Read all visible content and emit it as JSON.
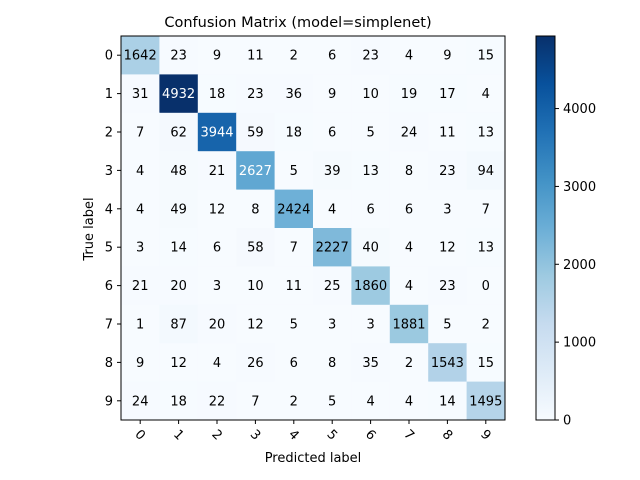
{
  "chart_data": {
    "type": "heatmap",
    "title": "Confusion Matrix (model=simplenet)",
    "xlabel": "Predicted label",
    "ylabel": "True label",
    "x_categories": [
      "0",
      "1",
      "2",
      "3",
      "4",
      "5",
      "6",
      "7",
      "8",
      "9"
    ],
    "y_categories": [
      "0",
      "1",
      "2",
      "3",
      "4",
      "5",
      "6",
      "7",
      "8",
      "9"
    ],
    "values": [
      [
        1642,
        23,
        9,
        11,
        2,
        6,
        23,
        4,
        9,
        15
      ],
      [
        31,
        4932,
        18,
        23,
        36,
        9,
        10,
        19,
        17,
        4
      ],
      [
        7,
        62,
        3944,
        59,
        18,
        6,
        5,
        24,
        11,
        13
      ],
      [
        4,
        48,
        21,
        2627,
        5,
        39,
        13,
        8,
        23,
        94
      ],
      [
        4,
        49,
        12,
        8,
        2424,
        4,
        6,
        6,
        3,
        7
      ],
      [
        3,
        14,
        6,
        58,
        7,
        2227,
        40,
        4,
        12,
        13
      ],
      [
        21,
        20,
        3,
        10,
        11,
        25,
        1860,
        4,
        23,
        0
      ],
      [
        1,
        87,
        20,
        12,
        5,
        3,
        3,
        1881,
        5,
        2
      ],
      [
        9,
        12,
        4,
        26,
        6,
        8,
        35,
        2,
        1543,
        15
      ],
      [
        24,
        18,
        22,
        7,
        2,
        5,
        4,
        4,
        14,
        1495
      ]
    ],
    "colormap": "Blues",
    "vmin": 0,
    "vmax": 4932,
    "colorbar_ticks": [
      0,
      1000,
      2000,
      3000,
      4000
    ],
    "x_tick_rotation": "45 degrees",
    "grid": false
  }
}
